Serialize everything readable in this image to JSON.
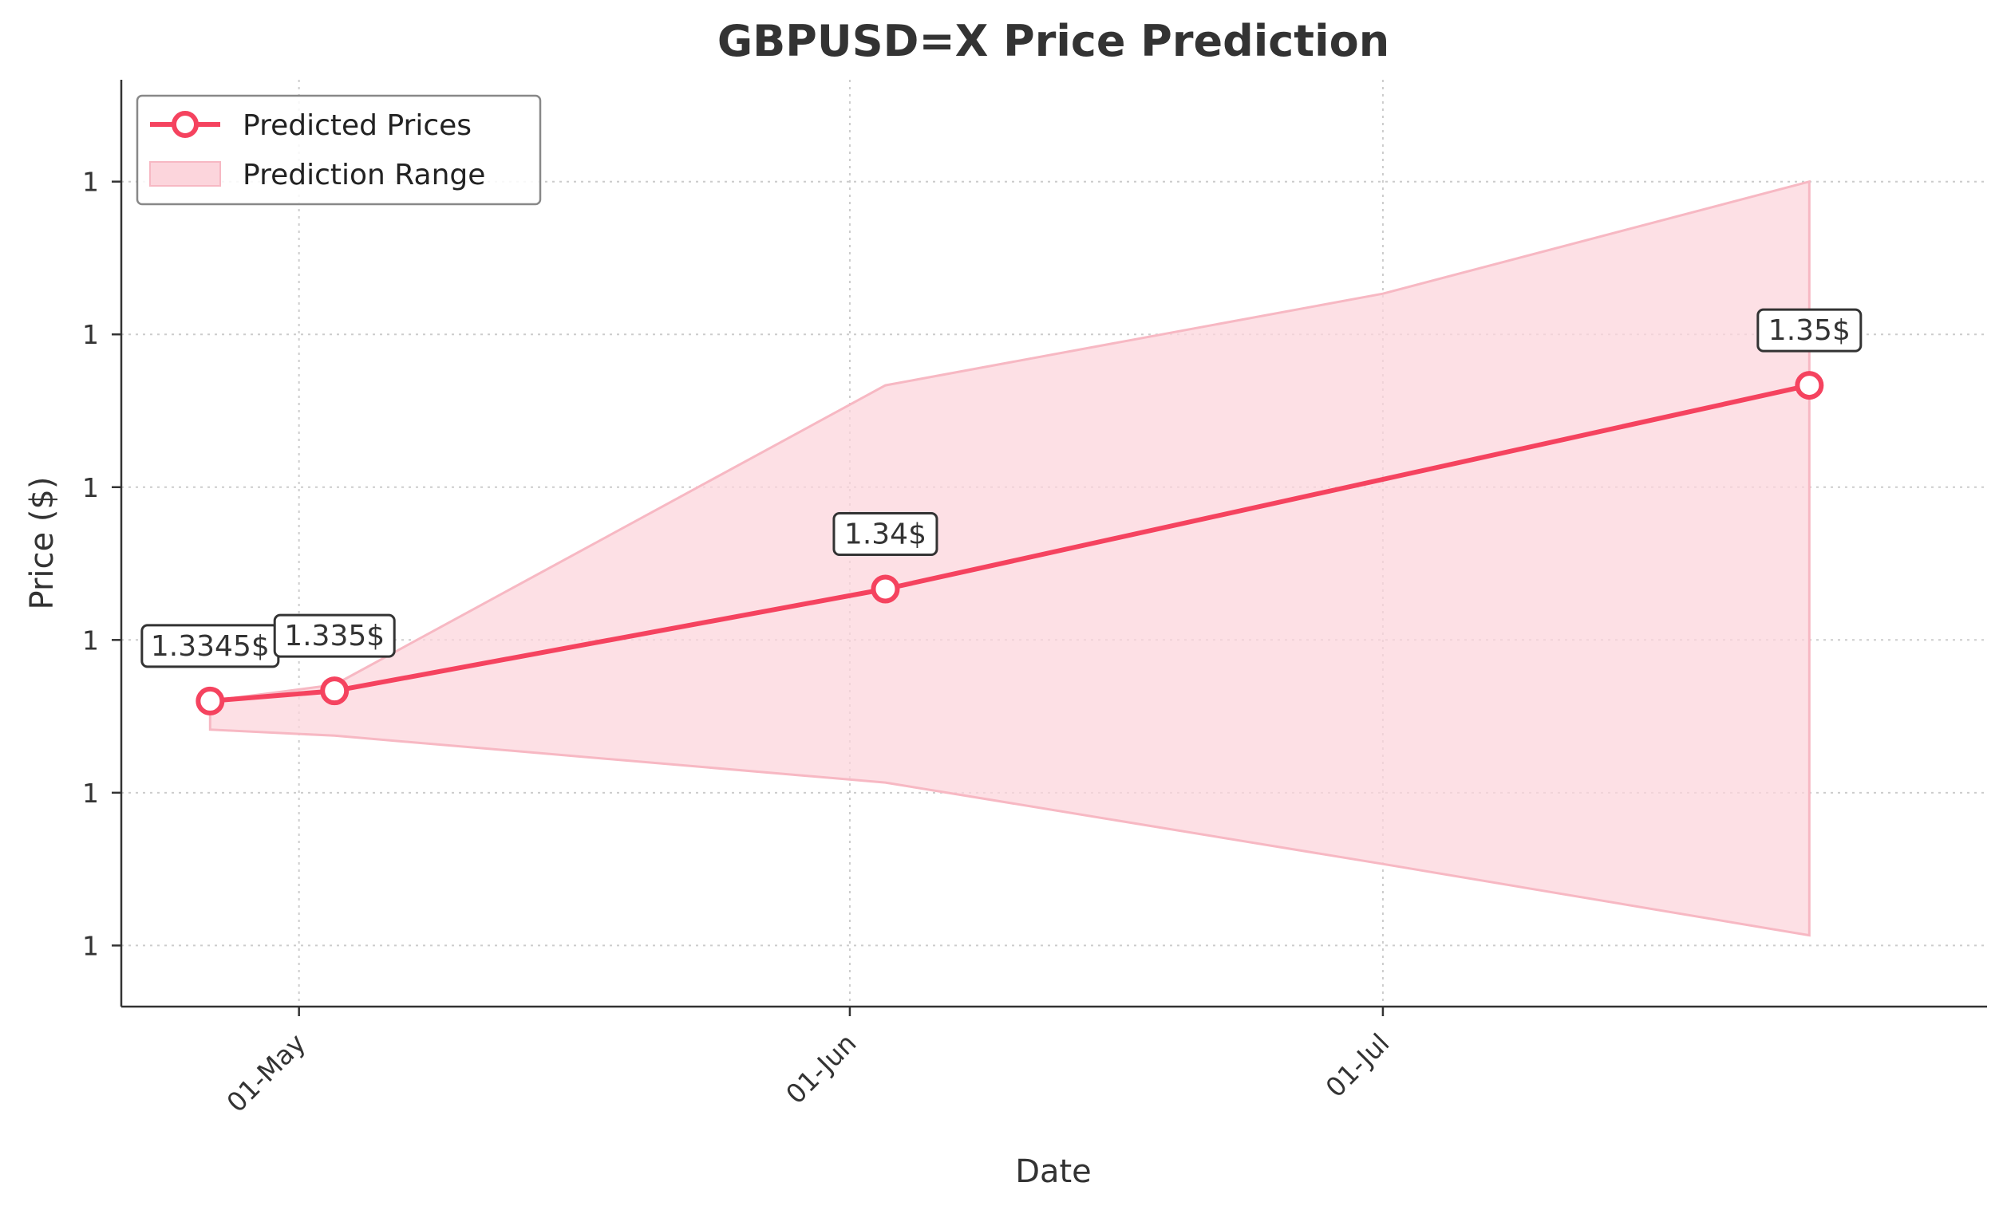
{
  "chart_data": {
    "type": "line",
    "title": "GBPUSD=X Price Prediction",
    "xlabel": "Date",
    "ylabel": "Price ($)",
    "x_ticks": [
      "01-May",
      "01-Jun",
      "01-Jul"
    ],
    "y_ticks": [
      "1",
      "1",
      "1",
      "1",
      "1",
      "1"
    ],
    "series": [
      {
        "name": "Predicted Prices",
        "type": "line",
        "color": "#f5435f",
        "points": [
          {
            "date": "2025-04-26",
            "price": 1.3345,
            "label": "1.3345$"
          },
          {
            "date": "2025-05-03",
            "price": 1.335,
            "label": "1.335$"
          },
          {
            "date": "2025-06-03",
            "price": 1.34,
            "label": "1.34$"
          },
          {
            "date": "2025-07-25",
            "price": 1.35,
            "label": "1.35$"
          }
        ]
      },
      {
        "name": "Prediction Range",
        "type": "area",
        "color": "#fcd5dc",
        "points": [
          {
            "date": "2025-04-26",
            "low": 1.3331,
            "high": 1.3345
          },
          {
            "date": "2025-05-03",
            "low": 1.3328,
            "high": 1.3353
          },
          {
            "date": "2025-06-03",
            "low": 1.3305,
            "high": 1.35
          },
          {
            "date": "2025-07-01",
            "low": 1.3265,
            "high": 1.3545
          },
          {
            "date": "2025-07-25",
            "low": 1.323,
            "high": 1.36
          }
        ]
      }
    ],
    "xlim": [
      "2025-04-21",
      "2025-08-04"
    ],
    "ylim": [
      1.3195,
      1.365
    ],
    "grid": true,
    "legend_position": "top-left"
  }
}
